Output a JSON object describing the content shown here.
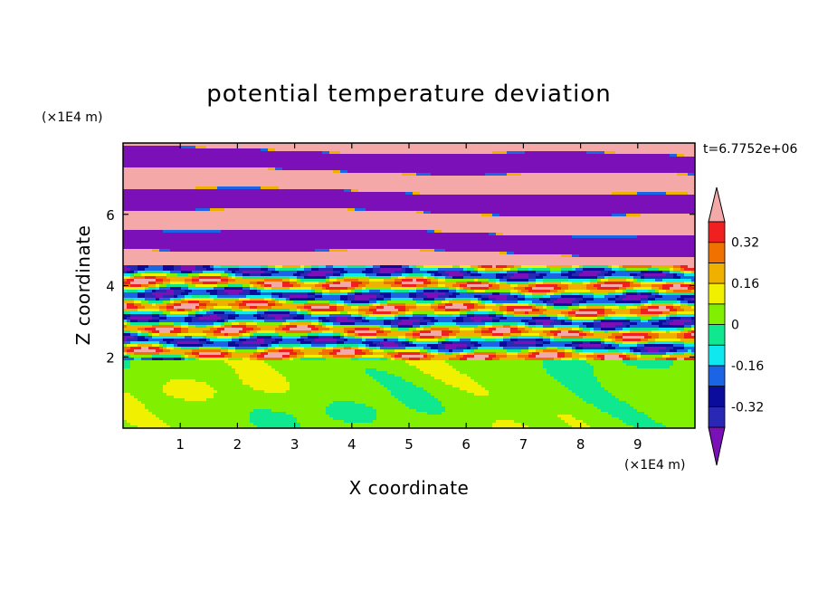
{
  "chart_data": {
    "type": "heatmap",
    "title": "potential temperature deviation",
    "xlabel": "X coordinate",
    "ylabel": "Z coordinate",
    "x_unit": "(×1E4 m)",
    "y_unit": "(×1E4 m)",
    "time_label": "t=6.7752e+06",
    "xlim": [
      0,
      10
    ],
    "ylim": [
      0,
      8
    ],
    "x_ticks": [
      "1",
      "2",
      "3",
      "4",
      "5",
      "6",
      "7",
      "8",
      "9"
    ],
    "x_tick_values": [
      1,
      2,
      3,
      4,
      5,
      6,
      7,
      8,
      9
    ],
    "y_ticks": [
      "2",
      "4",
      "6"
    ],
    "y_tick_values": [
      2,
      4,
      6
    ],
    "colorbar": {
      "levels": [
        -0.4,
        -0.32,
        -0.24,
        -0.16,
        -0.08,
        0,
        0.08,
        0.16,
        0.24,
        0.32,
        0.4
      ],
      "colors": [
        "#7b10b8",
        "#2828b4",
        "#0c0c9c",
        "#1c64e6",
        "#10e8f0",
        "#10e890",
        "#80f000",
        "#f0f000",
        "#f0b000",
        "#f07000",
        "#f02020",
        "#f4a8a8"
      ],
      "tick_labels": [
        "0.32",
        "0.16",
        "0",
        "-0.16",
        "-0.32"
      ],
      "tick_values": [
        0.32,
        0.16,
        0,
        -0.16,
        -0.32
      ],
      "extend": "both"
    },
    "layers": [
      {
        "z_range": [
          0.0,
          1.9
        ],
        "description_level": 0.04
      },
      {
        "z_range": [
          1.9,
          4.6
        ],
        "description_level": 0.0
      },
      {
        "z_range": [
          4.6,
          8.0
        ],
        "description_level": 0.35
      }
    ]
  }
}
